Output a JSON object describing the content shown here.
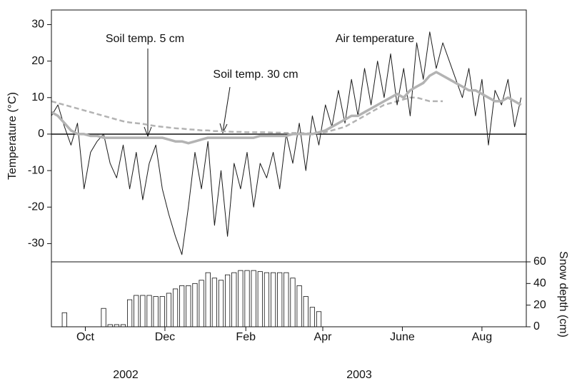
{
  "chart_data": [
    {
      "type": "line",
      "ylabel": "Temperature (°C)",
      "ylim": [
        -35,
        34
      ],
      "yticks": [
        -30,
        -20,
        -10,
        0,
        10,
        20,
        30
      ],
      "zero_line": true,
      "xlim": [
        18,
        382
      ],
      "x": [
        18,
        23,
        28,
        33,
        38,
        43,
        48,
        53,
        58,
        63,
        68,
        73,
        78,
        83,
        88,
        93,
        98,
        103,
        108,
        113,
        118,
        123,
        128,
        133,
        138,
        143,
        148,
        153,
        158,
        163,
        168,
        173,
        178,
        183,
        188,
        193,
        198,
        203,
        208,
        213,
        218,
        223,
        228,
        233,
        238,
        243,
        248,
        253,
        258,
        263,
        268,
        273,
        278,
        283,
        288,
        293,
        298,
        303,
        308,
        313,
        318,
        323,
        328,
        333,
        338,
        343,
        348,
        353,
        358,
        363,
        368,
        373,
        378
      ],
      "series": [
        {
          "name": "Soil temp. 30 cm",
          "color": "#b3b3b3",
          "dashed": true,
          "values": [
            9,
            8.5,
            8,
            7.5,
            7,
            6.5,
            6,
            5.5,
            5,
            4.5,
            4,
            3.5,
            3.2,
            3,
            2.8,
            2.5,
            2.2,
            2,
            1.8,
            1.6,
            1.5,
            1.3,
            1.2,
            1,
            1,
            0.8,
            0.8,
            0.7,
            0.6,
            0.6,
            0.5,
            0.5,
            0.5,
            0.5,
            0.4,
            0.4,
            0.3,
            0.3,
            0.3,
            0.2,
            0.2,
            0.3,
            0.5,
            1,
            1.5,
            2,
            3,
            4,
            5,
            6,
            7,
            8,
            8.5,
            9,
            9.5,
            10,
            10,
            9.5,
            9,
            9,
            9,
            null,
            null,
            null,
            null,
            null,
            null,
            null,
            null,
            null,
            null,
            null,
            null
          ]
        },
        {
          "name": "Air temperature",
          "color": "#1a1a1a",
          "dashed": false,
          "values": [
            5,
            8,
            2,
            -3,
            3,
            -15,
            -5,
            -2,
            0,
            -8,
            -12,
            -3,
            -15,
            -5,
            -18,
            -8,
            -3,
            -15,
            -22,
            -28,
            -33,
            -20,
            -5,
            -15,
            -2,
            -25,
            -10,
            -28,
            -8,
            -15,
            -5,
            -20,
            -8,
            -12,
            -5,
            -15,
            0,
            -8,
            3,
            -10,
            5,
            -3,
            8,
            2,
            12,
            3,
            15,
            5,
            18,
            8,
            20,
            10,
            22,
            8,
            18,
            5,
            25,
            15,
            28,
            18,
            25,
            20,
            15,
            10,
            18,
            5,
            15,
            -3,
            12,
            8,
            15,
            2,
            10
          ]
        },
        {
          "name": "Soil temp. 5 cm",
          "color": "#b3b3b3",
          "dashed": false,
          "values": [
            6,
            5,
            3,
            1,
            0,
            0,
            -0.5,
            -0.5,
            -1,
            -1,
            -1,
            -1,
            -1,
            -1,
            -1,
            -1,
            -1,
            -1,
            -1.5,
            -2,
            -2,
            -2.5,
            -2,
            -1.5,
            -1,
            -1,
            -1,
            -1,
            -1,
            -1,
            -1,
            -1,
            -0.5,
            -0.5,
            -0.5,
            -0.5,
            -0.5,
            0,
            0,
            0,
            0,
            0.5,
            1,
            2,
            3,
            4,
            5,
            5,
            6,
            7,
            8,
            9,
            10,
            11,
            10,
            12,
            13,
            14,
            16,
            17,
            16,
            15,
            14,
            13,
            12,
            12,
            11,
            10,
            9,
            9,
            10,
            9,
            8
          ]
        }
      ]
    },
    {
      "type": "bar",
      "ylabel": "Snow depth (cm)",
      "ylim": [
        0,
        60
      ],
      "yticks": [
        0,
        20,
        40,
        60
      ],
      "color": "#ffffff",
      "xlim": [
        18,
        382
      ],
      "xticks": [
        {
          "value": 44,
          "label": "Oct"
        },
        {
          "value": 105,
          "label": "Dec"
        },
        {
          "value": 167,
          "label": "Feb"
        },
        {
          "value": 226,
          "label": "Apr"
        },
        {
          "value": 287,
          "label": "June"
        },
        {
          "value": 348,
          "label": "Aug"
        }
      ],
      "year_labels": [
        "2002",
        "2003"
      ],
      "x": [
        18,
        23,
        28,
        33,
        38,
        43,
        48,
        53,
        58,
        63,
        68,
        73,
        78,
        83,
        88,
        93,
        98,
        103,
        108,
        113,
        118,
        123,
        128,
        133,
        138,
        143,
        148,
        153,
        158,
        163,
        168,
        173,
        178,
        183,
        188,
        193,
        198,
        203,
        208,
        213,
        218,
        223,
        228,
        233,
        238,
        243,
        248,
        253,
        258,
        263,
        268,
        273,
        278,
        283,
        288,
        293,
        298,
        303,
        308,
        313,
        318,
        323,
        328,
        333,
        338,
        343,
        348,
        353,
        358,
        363,
        368,
        373,
        378
      ],
      "values": [
        0,
        0,
        13,
        0,
        0,
        0,
        0,
        0,
        17,
        2,
        2,
        2,
        25,
        29,
        29,
        29,
        28,
        28,
        31,
        35,
        38,
        38,
        40,
        43,
        50,
        45,
        43,
        48,
        50,
        52,
        52,
        52,
        51,
        50,
        50,
        50,
        50,
        45,
        38,
        28,
        18,
        14,
        0,
        0,
        0,
        0,
        0,
        0,
        0,
        0,
        0,
        0,
        0,
        0,
        0,
        0,
        0,
        0,
        0,
        0,
        0,
        0,
        0,
        0,
        0,
        0,
        0,
        0,
        0,
        0,
        0,
        0,
        0
      ]
    }
  ]
}
